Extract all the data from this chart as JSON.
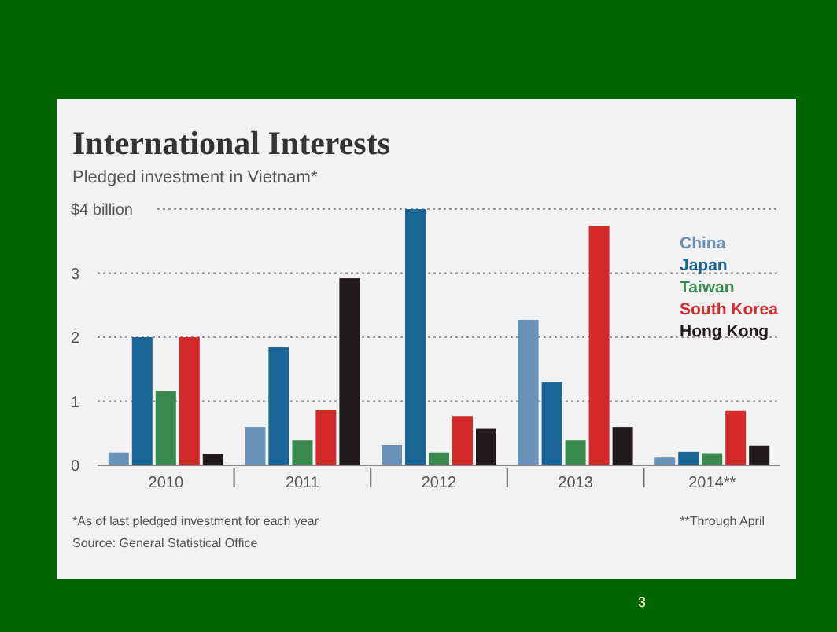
{
  "chart_data": {
    "type": "bar",
    "title": "International Interests",
    "subtitle": "Pledged investment in Vietnam*",
    "categories": [
      "2010",
      "2011",
      "2012",
      "2013",
      "2014**"
    ],
    "series": [
      {
        "name": "China",
        "color": "#6a92b8",
        "values": [
          0.2,
          0.6,
          0.32,
          2.27,
          0.12
        ]
      },
      {
        "name": "Japan",
        "color": "#1a6496",
        "values": [
          2.0,
          1.84,
          4.0,
          1.3,
          0.21
        ]
      },
      {
        "name": "Taiwan",
        "color": "#3a8a4e",
        "values": [
          1.16,
          0.39,
          0.2,
          0.39,
          0.19
        ]
      },
      {
        "name": "South Korea",
        "color": "#d42a2c",
        "values": [
          2.0,
          0.87,
          0.77,
          3.74,
          0.85
        ]
      },
      {
        "name": "Hong Kong",
        "color": "#231a1e",
        "values": [
          0.18,
          2.92,
          0.57,
          0.6,
          0.31
        ]
      }
    ],
    "ylim": [
      0,
      4.05
    ],
    "yticks": [
      0,
      1,
      2,
      3,
      {
        "value": 4,
        "label": "$4 billion"
      }
    ],
    "grid": "y",
    "legend": "top right",
    "annotations": [
      "*As of last pledged investment for each year",
      "Source: General Statistical Office",
      "**Through April",
      "3"
    ]
  }
}
